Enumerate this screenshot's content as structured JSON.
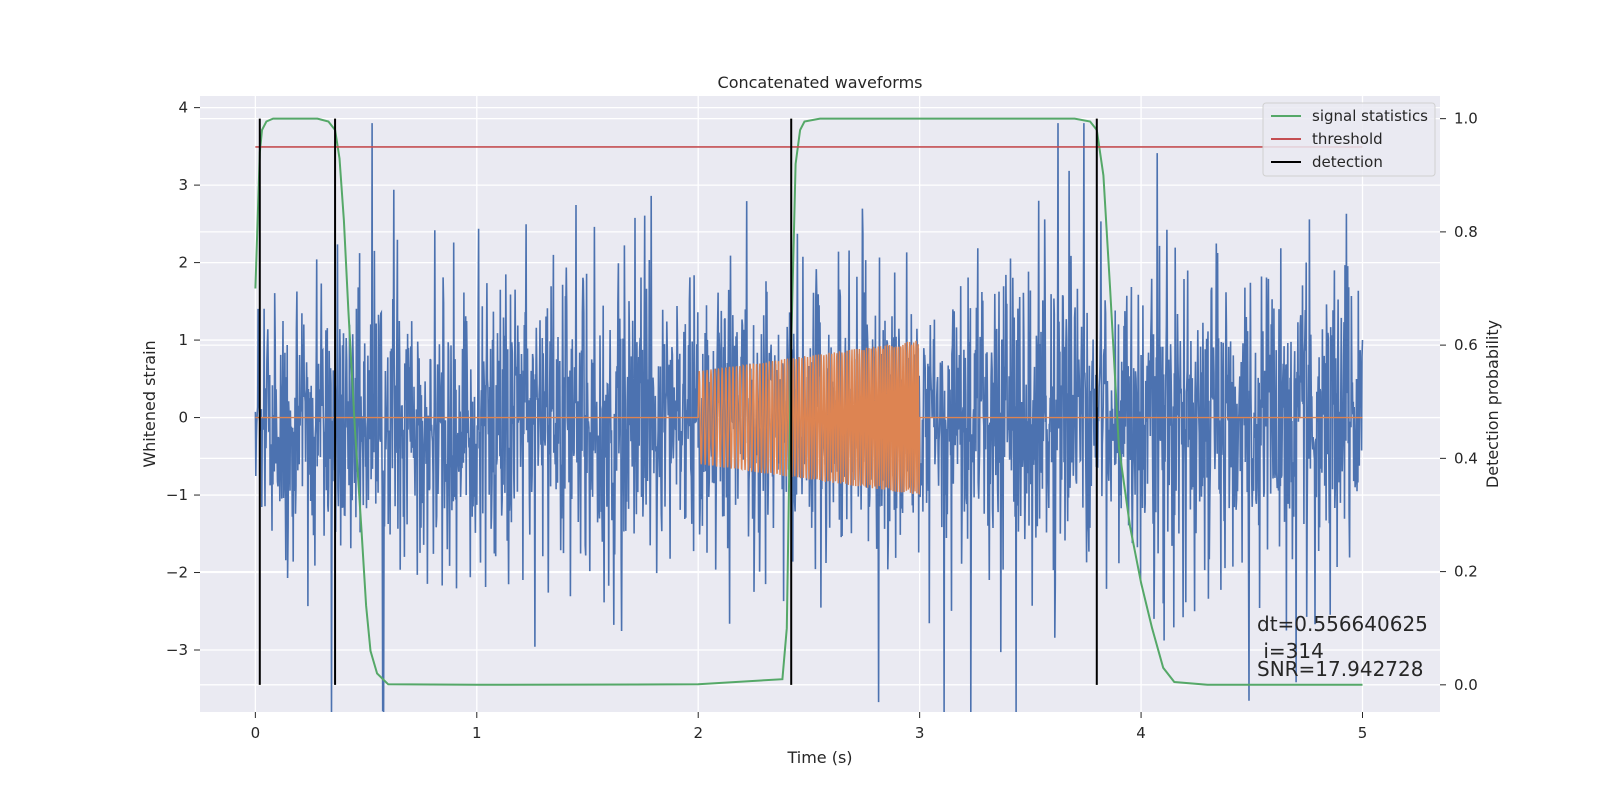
{
  "chart_data": {
    "type": "line",
    "title": "Concatenated waveforms",
    "xlabel": "Time (s)",
    "ylabel": "Whitened strain",
    "y2label": "Detection probability",
    "xlim": [
      -0.25,
      5.35
    ],
    "ylim": [
      -3.8,
      4.15
    ],
    "y2lim": [
      -0.048,
      1.04
    ],
    "xticks": [
      0,
      1,
      2,
      3,
      4,
      5
    ],
    "xtick_labels": [
      "0",
      "1",
      "2",
      "3",
      "4",
      "5"
    ],
    "yticks": [
      -3,
      -2,
      -1,
      0,
      1,
      2,
      3,
      4
    ],
    "ytick_labels": [
      "−3",
      "−2",
      "−1",
      "0",
      "1",
      "2",
      "3",
      "4"
    ],
    "y2ticks": [
      0.0,
      0.2,
      0.4,
      0.6,
      0.8,
      1.0
    ],
    "y2tick_labels": [
      "0.0",
      "0.2",
      "0.4",
      "0.6",
      "0.8",
      "1.0"
    ],
    "grid": true,
    "legend_position": "top-right",
    "colors": {
      "background": "#eaeaf2",
      "noise": "#4c72b0",
      "waveform": "#dd8452",
      "signal_statistics": "#55a868",
      "threshold": "#c44e52",
      "detection": "#000000"
    },
    "series": [
      {
        "name": "",
        "kind": "noisy whitened strain",
        "axis": "left",
        "x_range": [
          0,
          5
        ],
        "amplitude_peak": 3.8
      },
      {
        "name": "",
        "kind": "injected chirp waveform",
        "axis": "left",
        "x_range": [
          2,
          3
        ],
        "amplitude_start": 0.6,
        "amplitude_end": 1.0
      },
      {
        "name": "signal statistics",
        "axis": "right",
        "x": [
          0.0,
          0.01,
          0.02,
          0.03,
          0.05,
          0.08,
          0.12,
          0.2,
          0.28,
          0.33,
          0.36,
          0.38,
          0.4,
          0.42,
          0.45,
          0.48,
          0.5,
          0.52,
          0.55,
          0.6,
          1.0,
          2.0,
          2.38,
          2.4,
          2.42,
          2.44,
          2.46,
          2.48,
          2.55,
          3.0,
          3.7,
          3.77,
          3.8,
          3.83,
          3.86,
          3.9,
          3.95,
          4.0,
          4.05,
          4.1,
          4.15,
          4.3,
          5.0
        ],
        "y": [
          0.7,
          0.82,
          0.94,
          0.98,
          0.995,
          1.0,
          1.0,
          1.0,
          1.0,
          0.995,
          0.98,
          0.93,
          0.82,
          0.66,
          0.45,
          0.27,
          0.14,
          0.06,
          0.02,
          0.001,
          0.0,
          0.001,
          0.01,
          0.1,
          0.6,
          0.92,
          0.98,
          0.995,
          1.0,
          1.0,
          1.0,
          0.995,
          0.98,
          0.9,
          0.7,
          0.42,
          0.28,
          0.18,
          0.1,
          0.03,
          0.005,
          0.0,
          0.0
        ]
      },
      {
        "name": "threshold",
        "axis": "right",
        "x": [
          0,
          5
        ],
        "y": [
          0.95,
          0.95
        ]
      },
      {
        "name": "detection",
        "axis": "right",
        "kind": "vertical lines",
        "x": [
          0.02,
          0.36,
          2.42,
          3.8
        ],
        "y_range": [
          0.0,
          1.0
        ]
      }
    ],
    "annotations": [
      "dt=0.556640625",
      " i=314",
      "SNR=17.942728"
    ]
  }
}
